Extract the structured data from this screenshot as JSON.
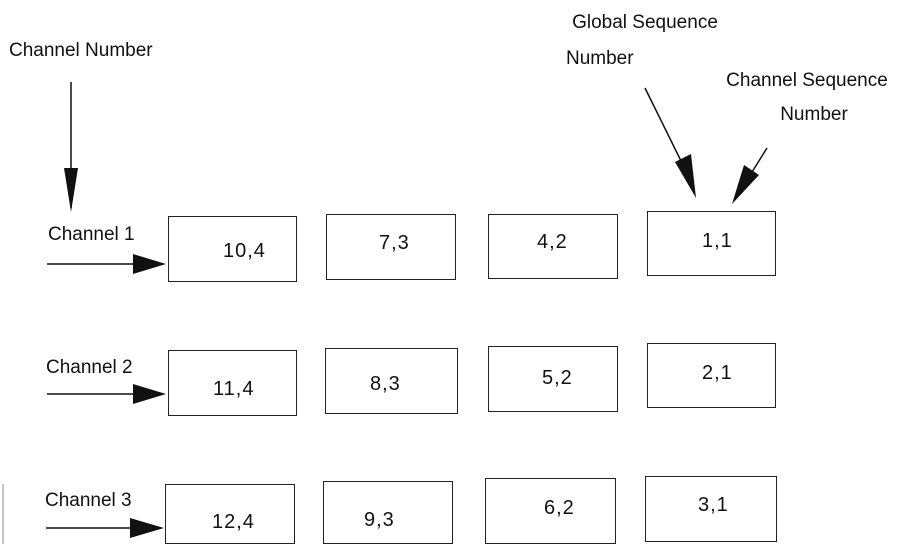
{
  "annotations": {
    "channel_number": "Channel Number",
    "global_seq_line1": "Global Sequence",
    "global_seq_line2": "Number",
    "channel_seq_line1": "Channel Sequence",
    "channel_seq_line2": "Number"
  },
  "channels": [
    {
      "label": "Channel 1",
      "messages": [
        "10,4",
        "7,3",
        "4,2",
        "1,1"
      ]
    },
    {
      "label": "Channel 2",
      "messages": [
        "11,4",
        "8,3",
        "5,2",
        "2,1"
      ]
    },
    {
      "label": "Channel 3",
      "messages": [
        "12,4",
        "9,3",
        "6,2",
        "3,1"
      ]
    }
  ]
}
